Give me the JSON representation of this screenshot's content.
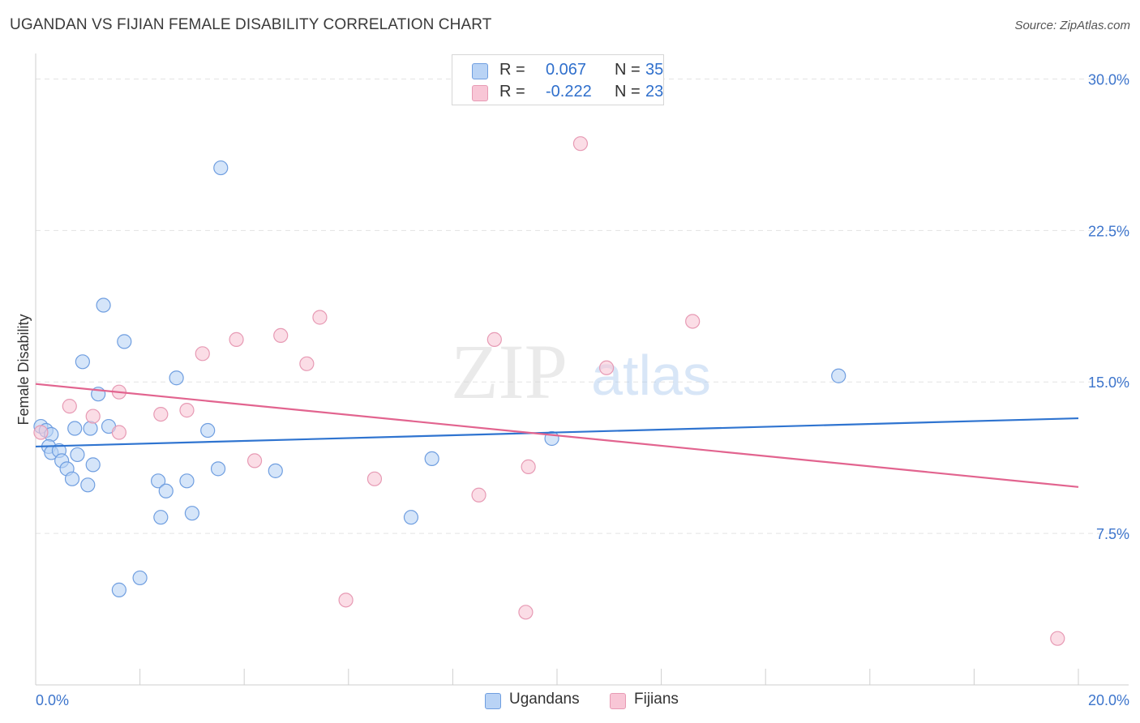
{
  "title": "UGANDAN VS FIJIAN FEMALE DISABILITY CORRELATION CHART",
  "source": "Source: ZipAtlas.com",
  "watermark": {
    "zip": "ZIP",
    "atlas": "atlas"
  },
  "legend_stats": [
    {
      "swatch_color": "#b9d3f5",
      "r_label": "R =",
      "r_value": "0.067",
      "n_label": "N =",
      "n_value": "35"
    },
    {
      "swatch_color": "#f8c6d6",
      "r_label": "R =",
      "r_value": "-0.222",
      "n_label": "N =",
      "n_value": "23"
    }
  ],
  "legend_series": [
    "Ugandans",
    "Fijians"
  ],
  "colors": {
    "blue_fill": "#b9d3f5",
    "blue_stroke": "#6f9ee0",
    "blue_line": "#2f74d0",
    "pink_fill": "#f8c6d6",
    "pink_stroke": "#e79ab4",
    "pink_line": "#e2648f",
    "tick_text": "#3d75cc",
    "grid": "#e3e3e3"
  },
  "chart_data": {
    "type": "scatter",
    "title": "UGANDAN VS FIJIAN FEMALE DISABILITY CORRELATION CHART",
    "xlabel": "",
    "ylabel": "Female Disability",
    "xlim": [
      0,
      20
    ],
    "ylim": [
      0,
      30.7
    ],
    "x_tick_labels": [
      "0.0%",
      "20.0%"
    ],
    "y_ticks": [
      7.5,
      15.0,
      22.5,
      30.0
    ],
    "y_tick_labels": [
      "7.5%",
      "15.0%",
      "22.5%",
      "30.0%"
    ],
    "grid": true,
    "legend_placement": "top-center",
    "series": [
      {
        "name": "Ugandans",
        "r": 0.067,
        "n": 35,
        "trend": {
          "x": [
            0,
            20
          ],
          "y": [
            11.8,
            13.2
          ]
        },
        "points": [
          [
            0.1,
            12.8
          ],
          [
            0.2,
            12.6
          ],
          [
            0.3,
            12.4
          ],
          [
            0.25,
            11.8
          ],
          [
            0.3,
            11.5
          ],
          [
            0.45,
            11.6
          ],
          [
            0.5,
            11.1
          ],
          [
            0.6,
            10.7
          ],
          [
            0.7,
            10.2
          ],
          [
            0.8,
            11.4
          ],
          [
            0.75,
            12.7
          ],
          [
            0.9,
            16.0
          ],
          [
            1.0,
            9.9
          ],
          [
            1.05,
            12.7
          ],
          [
            1.1,
            10.9
          ],
          [
            1.2,
            14.4
          ],
          [
            1.3,
            18.8
          ],
          [
            1.4,
            12.8
          ],
          [
            1.6,
            4.7
          ],
          [
            1.7,
            17.0
          ],
          [
            2.0,
            5.3
          ],
          [
            2.35,
            10.1
          ],
          [
            2.4,
            8.3
          ],
          [
            2.5,
            9.6
          ],
          [
            2.7,
            15.2
          ],
          [
            2.9,
            10.1
          ],
          [
            3.0,
            8.5
          ],
          [
            3.3,
            12.6
          ],
          [
            3.5,
            10.7
          ],
          [
            3.55,
            25.6
          ],
          [
            4.6,
            10.6
          ],
          [
            7.2,
            8.3
          ],
          [
            7.6,
            11.2
          ],
          [
            9.9,
            12.2
          ],
          [
            15.4,
            15.3
          ]
        ]
      },
      {
        "name": "Fijians",
        "r": -0.222,
        "n": 23,
        "trend": {
          "x": [
            0,
            20
          ],
          "y": [
            14.9,
            9.8
          ]
        },
        "points": [
          [
            0.1,
            12.5
          ],
          [
            0.65,
            13.8
          ],
          [
            1.1,
            13.3
          ],
          [
            1.6,
            12.5
          ],
          [
            1.6,
            14.5
          ],
          [
            2.4,
            13.4
          ],
          [
            2.9,
            13.6
          ],
          [
            3.2,
            16.4
          ],
          [
            3.85,
            17.1
          ],
          [
            4.2,
            11.1
          ],
          [
            4.7,
            17.3
          ],
          [
            5.2,
            15.9
          ],
          [
            5.45,
            18.2
          ],
          [
            5.95,
            4.2
          ],
          [
            6.5,
            10.2
          ],
          [
            8.5,
            9.4
          ],
          [
            8.8,
            17.1
          ],
          [
            9.4,
            3.6
          ],
          [
            9.45,
            10.8
          ],
          [
            10.45,
            26.8
          ],
          [
            10.95,
            15.7
          ],
          [
            12.6,
            18.0
          ],
          [
            19.6,
            2.3
          ]
        ]
      }
    ]
  }
}
